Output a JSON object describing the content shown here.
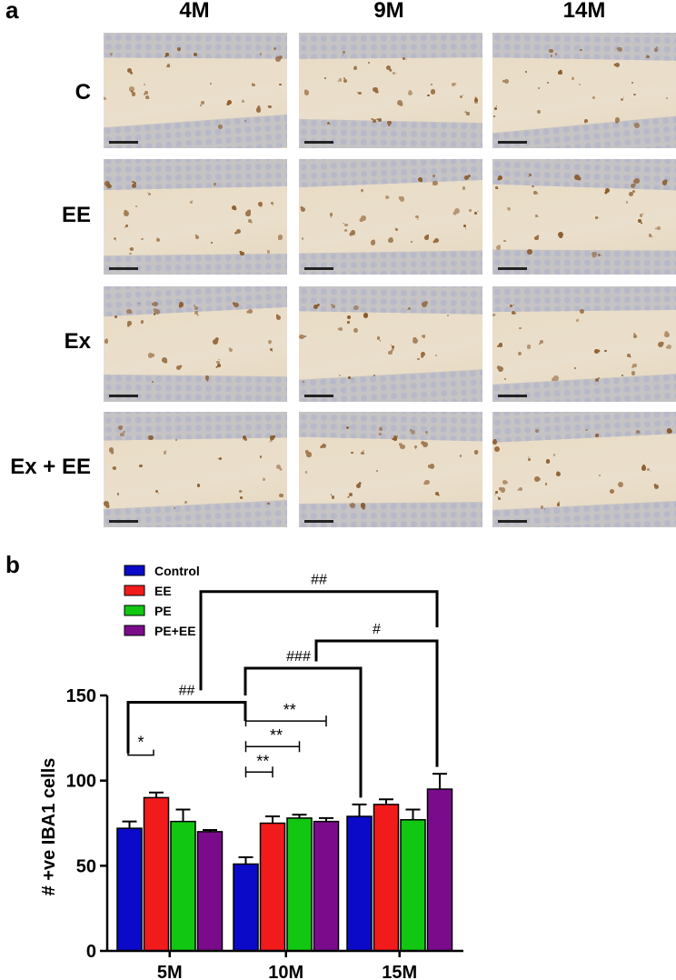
{
  "panel_a": {
    "letter": "a",
    "columns": [
      "4M",
      "9M",
      "14M"
    ],
    "rows": [
      "C",
      "EE",
      "Ex",
      "Ex + EE"
    ],
    "tile_colors": {
      "tissue": "#e8dbc4",
      "band": "#c6c3c4",
      "cell": "#8a5a2a"
    }
  },
  "panel_b": {
    "letter": "b"
  },
  "chart_data": {
    "type": "bar",
    "categories": [
      "5M",
      "10M",
      "15M"
    ],
    "ylabel": "# +ve IBA1 cells",
    "xlabel": "",
    "ylim": [
      0,
      150
    ],
    "yticks": [
      0,
      50,
      100,
      150
    ],
    "legend_position": "top-left",
    "series": [
      {
        "name": "Control",
        "color": "#0a0ac8",
        "values": [
          72,
          51,
          79
        ],
        "errors": [
          4,
          4,
          7
        ]
      },
      {
        "name": "EE",
        "color": "#f21b1b",
        "values": [
          90,
          75,
          86
        ],
        "errors": [
          3,
          4,
          3
        ]
      },
      {
        "name": "PE",
        "color": "#12c712",
        "values": [
          76,
          78,
          77
        ],
        "errors": [
          7,
          2,
          6
        ]
      },
      {
        "name": "PE+EE",
        "color": "#7a0c8c",
        "values": [
          70,
          76,
          95
        ],
        "errors": [
          1,
          2,
          9
        ]
      }
    ],
    "annotations": [
      {
        "label": "*"
      },
      {
        "label": "**"
      },
      {
        "label": "**"
      },
      {
        "label": "**"
      },
      {
        "label": "##"
      },
      {
        "label": "###"
      },
      {
        "label": "#"
      },
      {
        "label": "##"
      }
    ]
  }
}
